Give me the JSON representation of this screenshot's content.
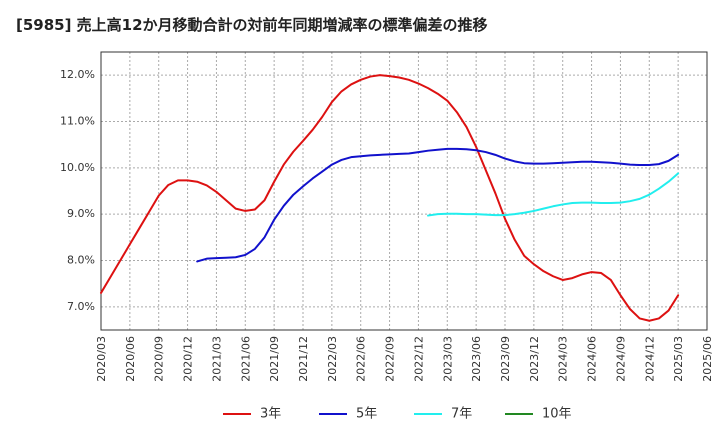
{
  "chart_data": {
    "type": "line",
    "title": "[5985]  売上高12か月移動合計の対前年同期増減率の標準偏差の推移",
    "xlabel": "",
    "ylabel": "",
    "x_ticks": [
      "2020/03",
      "2020/06",
      "2020/09",
      "2020/12",
      "2021/03",
      "2021/06",
      "2021/09",
      "2021/12",
      "2022/03",
      "2022/06",
      "2022/09",
      "2022/12",
      "2023/03",
      "2023/06",
      "2023/09",
      "2023/12",
      "2024/03",
      "2024/06",
      "2024/09",
      "2024/12",
      "2025/03",
      "2025/06"
    ],
    "y_ticks": [
      "7.0%",
      "8.0%",
      "9.0%",
      "10.0%",
      "11.0%",
      "12.0%"
    ],
    "ylim": [
      6.5,
      12.5
    ],
    "grid": true,
    "legend_position": "bottom",
    "series": [
      {
        "name": "3年",
        "color": "#dd1111",
        "points": [
          [
            "2020/03",
            7.3
          ],
          [
            "2020/04",
            7.65
          ],
          [
            "2020/05",
            8.0
          ],
          [
            "2020/06",
            8.35
          ],
          [
            "2020/07",
            8.7
          ],
          [
            "2020/08",
            9.05
          ],
          [
            "2020/09",
            9.4
          ],
          [
            "2020/10",
            9.63
          ],
          [
            "2020/11",
            9.73
          ],
          [
            "2020/12",
            9.73
          ],
          [
            "2021/01",
            9.7
          ],
          [
            "2021/02",
            9.62
          ],
          [
            "2021/03",
            9.48
          ],
          [
            "2021/04",
            9.3
          ],
          [
            "2021/05",
            9.12
          ],
          [
            "2021/06",
            9.07
          ],
          [
            "2021/07",
            9.1
          ],
          [
            "2021/08",
            9.3
          ],
          [
            "2021/09",
            9.7
          ],
          [
            "2021/10",
            10.07
          ],
          [
            "2021/11",
            10.35
          ],
          [
            "2021/12",
            10.58
          ],
          [
            "2022/01",
            10.82
          ],
          [
            "2022/02",
            11.1
          ],
          [
            "2022/03",
            11.42
          ],
          [
            "2022/04",
            11.65
          ],
          [
            "2022/05",
            11.8
          ],
          [
            "2022/06",
            11.9
          ],
          [
            "2022/07",
            11.97
          ],
          [
            "2022/08",
            12.0
          ],
          [
            "2022/09",
            11.98
          ],
          [
            "2022/10",
            11.95
          ],
          [
            "2022/11",
            11.9
          ],
          [
            "2022/12",
            11.82
          ],
          [
            "2023/01",
            11.72
          ],
          [
            "2023/02",
            11.6
          ],
          [
            "2023/03",
            11.45
          ],
          [
            "2023/04",
            11.2
          ],
          [
            "2023/05",
            10.88
          ],
          [
            "2023/06",
            10.45
          ],
          [
            "2023/07",
            9.95
          ],
          [
            "2023/08",
            9.45
          ],
          [
            "2023/09",
            8.9
          ],
          [
            "2023/10",
            8.45
          ],
          [
            "2023/11",
            8.1
          ],
          [
            "2023/12",
            7.92
          ],
          [
            "2024/01",
            7.77
          ],
          [
            "2024/02",
            7.66
          ],
          [
            "2024/03",
            7.58
          ],
          [
            "2024/04",
            7.62
          ],
          [
            "2024/05",
            7.7
          ],
          [
            "2024/06",
            7.75
          ],
          [
            "2024/07",
            7.73
          ],
          [
            "2024/08",
            7.58
          ],
          [
            "2024/09",
            7.25
          ],
          [
            "2024/10",
            6.95
          ],
          [
            "2024/11",
            6.75
          ],
          [
            "2024/12",
            6.7
          ],
          [
            "2025/01",
            6.75
          ],
          [
            "2025/02",
            6.92
          ],
          [
            "2025/03",
            7.25
          ]
        ]
      },
      {
        "name": "5年",
        "color": "#1111cc",
        "points": [
          [
            "2021/01",
            7.98
          ],
          [
            "2021/02",
            8.04
          ],
          [
            "2021/03",
            8.05
          ],
          [
            "2021/04",
            8.06
          ],
          [
            "2021/05",
            8.07
          ],
          [
            "2021/06",
            8.12
          ],
          [
            "2021/07",
            8.25
          ],
          [
            "2021/08",
            8.5
          ],
          [
            "2021/09",
            8.88
          ],
          [
            "2021/10",
            9.18
          ],
          [
            "2021/11",
            9.42
          ],
          [
            "2021/12",
            9.6
          ],
          [
            "2022/01",
            9.77
          ],
          [
            "2022/02",
            9.92
          ],
          [
            "2022/03",
            10.07
          ],
          [
            "2022/04",
            10.17
          ],
          [
            "2022/05",
            10.23
          ],
          [
            "2022/06",
            10.25
          ],
          [
            "2022/07",
            10.27
          ],
          [
            "2022/08",
            10.28
          ],
          [
            "2022/09",
            10.29
          ],
          [
            "2022/10",
            10.3
          ],
          [
            "2022/11",
            10.31
          ],
          [
            "2022/12",
            10.34
          ],
          [
            "2023/01",
            10.37
          ],
          [
            "2023/02",
            10.39
          ],
          [
            "2023/03",
            10.41
          ],
          [
            "2023/04",
            10.41
          ],
          [
            "2023/05",
            10.4
          ],
          [
            "2023/06",
            10.38
          ],
          [
            "2023/07",
            10.34
          ],
          [
            "2023/08",
            10.28
          ],
          [
            "2023/09",
            10.2
          ],
          [
            "2023/10",
            10.14
          ],
          [
            "2023/11",
            10.1
          ],
          [
            "2023/12",
            10.09
          ],
          [
            "2024/01",
            10.09
          ],
          [
            "2024/02",
            10.1
          ],
          [
            "2024/03",
            10.11
          ],
          [
            "2024/04",
            10.12
          ],
          [
            "2024/05",
            10.13
          ],
          [
            "2024/06",
            10.13
          ],
          [
            "2024/07",
            10.12
          ],
          [
            "2024/08",
            10.11
          ],
          [
            "2024/09",
            10.09
          ],
          [
            "2024/10",
            10.07
          ],
          [
            "2024/11",
            10.06
          ],
          [
            "2024/12",
            10.06
          ],
          [
            "2025/01",
            10.08
          ],
          [
            "2025/02",
            10.15
          ],
          [
            "2025/03",
            10.28
          ]
        ]
      },
      {
        "name": "7年",
        "color": "#22eeee",
        "points": [
          [
            "2023/01",
            8.97
          ],
          [
            "2023/02",
            9.0
          ],
          [
            "2023/03",
            9.01
          ],
          [
            "2023/04",
            9.01
          ],
          [
            "2023/05",
            9.0
          ],
          [
            "2023/06",
            9.0
          ],
          [
            "2023/07",
            8.99
          ],
          [
            "2023/08",
            8.98
          ],
          [
            "2023/09",
            8.98
          ],
          [
            "2023/10",
            9.0
          ],
          [
            "2023/11",
            9.03
          ],
          [
            "2023/12",
            9.07
          ],
          [
            "2024/01",
            9.12
          ],
          [
            "2024/02",
            9.17
          ],
          [
            "2024/03",
            9.21
          ],
          [
            "2024/04",
            9.24
          ],
          [
            "2024/05",
            9.25
          ],
          [
            "2024/06",
            9.25
          ],
          [
            "2024/07",
            9.24
          ],
          [
            "2024/08",
            9.24
          ],
          [
            "2024/09",
            9.25
          ],
          [
            "2024/10",
            9.28
          ],
          [
            "2024/11",
            9.33
          ],
          [
            "2024/12",
            9.42
          ],
          [
            "2025/01",
            9.55
          ],
          [
            "2025/02",
            9.7
          ],
          [
            "2025/03",
            9.88
          ]
        ]
      },
      {
        "name": "10年",
        "color": "#228822",
        "points": []
      }
    ]
  }
}
